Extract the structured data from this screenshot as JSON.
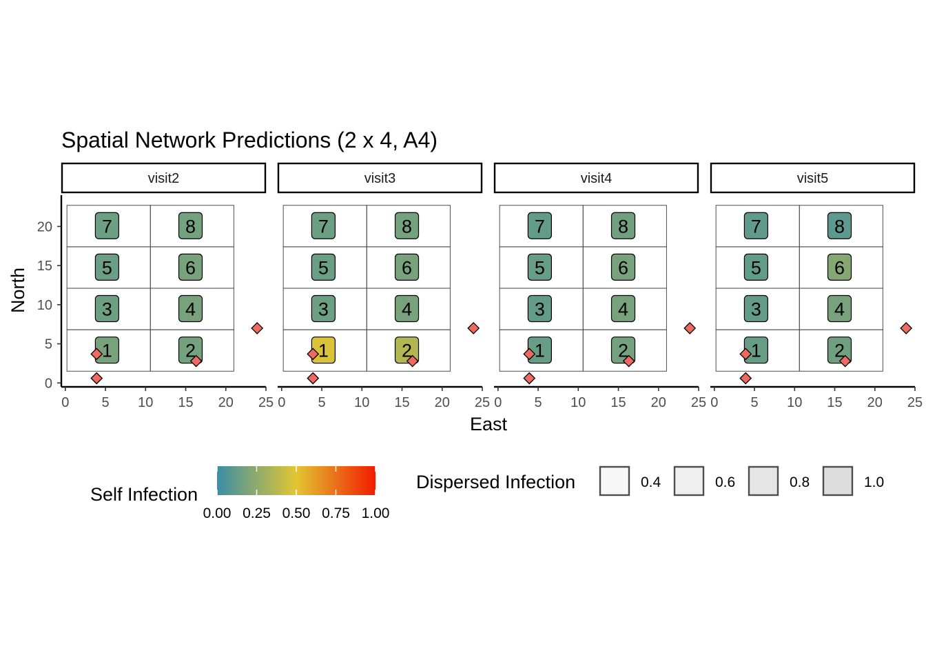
{
  "chart_data": {
    "type": "tile-map",
    "title": "Spatial Network Predictions (2 x 4, A4)",
    "xlabel": "East",
    "ylabel": "North",
    "xlim": [
      -0.5,
      25
    ],
    "ylim": [
      -0.5,
      24
    ],
    "x_ticks": [
      0,
      5,
      10,
      15,
      20,
      25
    ],
    "y_ticks": [
      0,
      5,
      10,
      15,
      20
    ],
    "grid": false,
    "plot_cells": [
      {
        "id": "1",
        "x": 5.2,
        "y": 4.2,
        "xmin": 0.2,
        "xmax": 10.6,
        "ymin": 1.5,
        "ymax": 6.8
      },
      {
        "id": "2",
        "x": 15.6,
        "y": 4.2,
        "xmin": 10.6,
        "xmax": 21.0,
        "ymin": 1.5,
        "ymax": 6.8
      },
      {
        "id": "3",
        "x": 5.2,
        "y": 9.5,
        "xmin": 0.2,
        "xmax": 10.6,
        "ymin": 6.8,
        "ymax": 12.1
      },
      {
        "id": "4",
        "x": 15.6,
        "y": 9.5,
        "xmin": 10.6,
        "xmax": 21.0,
        "ymin": 6.8,
        "ymax": 12.1
      },
      {
        "id": "5",
        "x": 5.2,
        "y": 14.8,
        "xmin": 0.2,
        "xmax": 10.6,
        "ymin": 12.1,
        "ymax": 17.4
      },
      {
        "id": "6",
        "x": 15.6,
        "y": 14.8,
        "xmin": 10.6,
        "xmax": 21.0,
        "ymin": 12.1,
        "ymax": 17.4
      },
      {
        "id": "7",
        "x": 5.2,
        "y": 20.1,
        "xmin": 0.2,
        "xmax": 10.6,
        "ymin": 17.4,
        "ymax": 22.7
      },
      {
        "id": "8",
        "x": 15.6,
        "y": 20.1,
        "xmin": 10.6,
        "xmax": 21.0,
        "ymin": 17.4,
        "ymax": 22.7
      }
    ],
    "sources": [
      {
        "x": 3.9,
        "y": 3.7
      },
      {
        "x": 16.3,
        "y": 2.8
      },
      {
        "x": 3.9,
        "y": 0.6
      },
      {
        "x": 23.9,
        "y": 7.0
      }
    ],
    "source_color": "#EE6A60",
    "facets": [
      {
        "name": "visit2",
        "self_infection": [
          0.18,
          0.17,
          0.15,
          0.18,
          0.14,
          0.18,
          0.15,
          0.17
        ]
      },
      {
        "name": "visit3",
        "self_infection": [
          0.47,
          0.36,
          0.15,
          0.18,
          0.14,
          0.18,
          0.15,
          0.17
        ]
      },
      {
        "name": "visit4",
        "self_infection": [
          0.13,
          0.17,
          0.12,
          0.18,
          0.13,
          0.18,
          0.12,
          0.16
        ]
      },
      {
        "name": "visit5",
        "self_infection": [
          0.13,
          0.16,
          0.12,
          0.18,
          0.12,
          0.22,
          0.11,
          0.1
        ]
      }
    ],
    "legends": {
      "self_infection": {
        "title": "Self Infection",
        "colors": [
          "#3B8EA5",
          "#E3C632",
          "#F11B00"
        ],
        "tick_labels": [
          "0.00",
          "0.25",
          "0.50",
          "0.75",
          "1.00"
        ],
        "tick_values": [
          0,
          0.25,
          0.5,
          0.75,
          1.0
        ]
      },
      "dispersed_infection": {
        "title": "Dispersed Infection",
        "keys": [
          {
            "label": "0.4",
            "value": 0.4,
            "fill": "#F7F7F7"
          },
          {
            "label": "0.6",
            "value": 0.6,
            "fill": "#EFEFEF"
          },
          {
            "label": "0.8",
            "value": 0.8,
            "fill": "#E6E6E6"
          },
          {
            "label": "1.0",
            "value": 1.0,
            "fill": "#DDDDDD"
          }
        ]
      }
    }
  }
}
